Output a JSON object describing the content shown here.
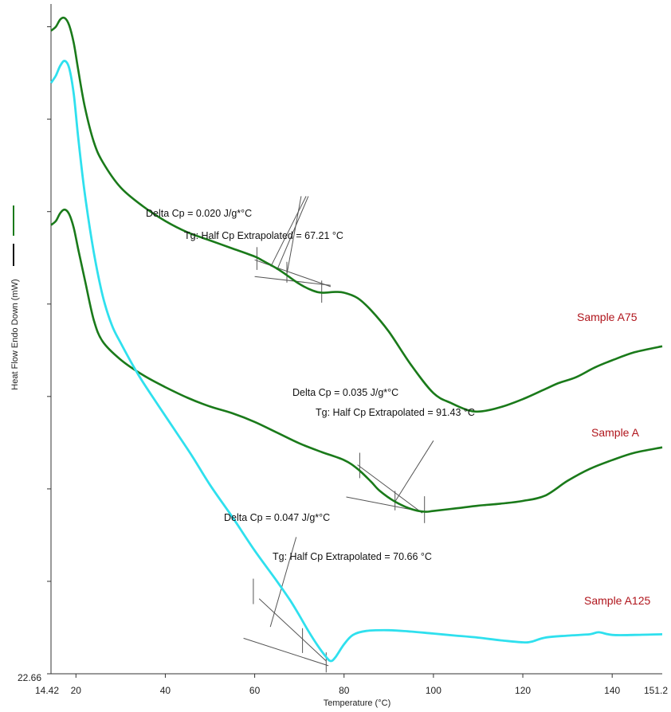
{
  "chart_data": {
    "type": "line",
    "title": "",
    "xlabel": "Temperature (°C)",
    "ylabel": "Heat Flow Endo Down (mW)",
    "xlim": [
      14.42,
      151.2
    ],
    "xtick_values": [
      20,
      40,
      60,
      80,
      100,
      120,
      140
    ],
    "x_start_label": "14.42",
    "x_end_label": "151.2",
    "y_bottom_label": "22.66",
    "ylim": [
      0,
      100
    ],
    "y_tick_values": [
      0,
      13.8,
      27.6,
      41.4,
      55.2,
      69.0,
      82.8,
      96.6
    ],
    "legend_marks": [
      {
        "name": "green-trace-mark",
        "color": "#1a7a1a"
      },
      {
        "name": "black-trace-mark",
        "color": "#111111"
      }
    ],
    "series": [
      {
        "name": "Sample A75",
        "color": "#1a7a1a",
        "x": [
          14.42,
          15.5,
          16.5,
          17.5,
          18.5,
          19.5,
          20.5,
          22,
          24,
          26,
          30,
          35,
          40,
          45,
          50,
          55,
          60,
          62,
          65,
          67.2,
          70,
          73,
          75,
          78,
          80,
          83,
          86,
          90,
          95,
          100,
          104,
          108,
          111,
          115,
          120,
          125,
          128,
          132,
          136,
          140,
          145,
          151.2
        ],
        "y": [
          96,
          96.6,
          97.7,
          97.9,
          96.8,
          94.2,
          90.2,
          84.6,
          79.4,
          76.4,
          72.6,
          69.8,
          67.6,
          65.9,
          64.7,
          63.5,
          62.3,
          61.6,
          60.5,
          59.5,
          58.2,
          57.2,
          56.9,
          57.0,
          56.9,
          56.1,
          54.3,
          51.1,
          46.1,
          41.9,
          40.4,
          39.3,
          39.2,
          39.8,
          41.0,
          42.5,
          43.4,
          44.3,
          45.7,
          46.8,
          48.0,
          48.9
        ]
      },
      {
        "name": "Sample A",
        "color": "#1a7a1a",
        "x": [
          14.42,
          15.5,
          16.5,
          17.5,
          18.5,
          19.5,
          20.5,
          22,
          24,
          26,
          30,
          35,
          40,
          45,
          50,
          55,
          60,
          65,
          70,
          75,
          80,
          83,
          86,
          88,
          91.4,
          95,
          98,
          100,
          105,
          110,
          115,
          120,
          125,
          130,
          135,
          140,
          145,
          151.2
        ],
        "y": [
          67,
          67.6,
          68.8,
          69.3,
          68.6,
          66.6,
          63.4,
          58.8,
          52.8,
          49.6,
          46.9,
          44.6,
          42.8,
          41.2,
          39.9,
          38.9,
          37.6,
          36.0,
          34.4,
          33.1,
          31.9,
          30.6,
          28.7,
          27.3,
          25.7,
          24.6,
          24.2,
          24.3,
          24.7,
          25.1,
          25.4,
          25.8,
          26.6,
          28.8,
          30.6,
          31.9,
          33.0,
          33.8
        ]
      },
      {
        "name": "Sample A125",
        "color": "#2fe0ee",
        "x": [
          14.42,
          15.5,
          16.5,
          17.5,
          18.5,
          19.5,
          20.5,
          22,
          24,
          26,
          28,
          30,
          34,
          38,
          42,
          46,
          50,
          55,
          60,
          65,
          68,
          70,
          72,
          74,
          76,
          77,
          78,
          80,
          82,
          85,
          90,
          95,
          100,
          105,
          110,
          115,
          120,
          122,
          125,
          130,
          135,
          137,
          140,
          145,
          151.2
        ],
        "y": [
          88.2,
          89.3,
          90.8,
          91.5,
          90.4,
          86.6,
          80.1,
          71.6,
          62.9,
          56.4,
          52.1,
          49.4,
          44.6,
          40.5,
          36.5,
          32.5,
          28.2,
          23.4,
          18.4,
          13.8,
          10.9,
          8.7,
          6.4,
          4.3,
          2.5,
          1.9,
          2.4,
          4.4,
          5.8,
          6.4,
          6.5,
          6.3,
          6.0,
          5.7,
          5.4,
          5.0,
          4.7,
          4.8,
          5.4,
          5.7,
          5.9,
          6.2,
          5.8,
          5.8,
          5.9
        ]
      }
    ],
    "annotations": [
      {
        "delta_cp": "Delta Cp = 0.020 J/g*°C",
        "tg": "Tg: Half Cp Extrapolated = 67.21 °C"
      },
      {
        "delta_cp": "Delta Cp = 0.035 J/g*°C",
        "tg": "Tg: Half Cp Extrapolated = 91.43 °C"
      },
      {
        "delta_cp": "Delta Cp = 0.047 J/g*°C",
        "tg": "Tg: Half Cp Extrapolated = 70.66 °C"
      }
    ],
    "construction_lines": [
      {
        "name": "a75-onset-tangent",
        "x": [
          60,
          77
        ],
        "y": [
          61.8,
          57.8
        ]
      },
      {
        "name": "a75-baseline",
        "x": [
          60,
          77
        ],
        "y": [
          59.3,
          58.0
        ]
      },
      {
        "name": "a75-pointer-1",
        "x": [
          63.6,
          71.5
        ],
        "y": [
          60.8,
          71.3
        ]
      },
      {
        "name": "a75-pointer-2",
        "x": [
          65,
          72
        ],
        "y": [
          60.3,
          71.3
        ]
      },
      {
        "name": "a75-pointer-3",
        "x": [
          67.2,
          70.4
        ],
        "y": [
          59.7,
          71.3
        ]
      },
      {
        "name": "a75-tick-1",
        "x": [
          60.5,
          60.5
        ],
        "y": [
          60.3,
          63.7
        ]
      },
      {
        "name": "a75-tick-2",
        "x": [
          67.2,
          67.2
        ],
        "y": [
          58.4,
          61.5
        ]
      },
      {
        "name": "a75-tick-3",
        "x": [
          75,
          75
        ],
        "y": [
          55.4,
          58.7
        ]
      },
      {
        "name": "a-tangent",
        "x": [
          83,
          97.5
        ],
        "y": [
          31.2,
          24.0
        ]
      },
      {
        "name": "a-baseline",
        "x": [
          80.5,
          97.5
        ],
        "y": [
          26.4,
          24.2
        ]
      },
      {
        "name": "a-pointer",
        "x": [
          91.4,
          100
        ],
        "y": [
          25.7,
          34.8
        ]
      },
      {
        "name": "a-tick-1",
        "x": [
          83.5,
          83.5
        ],
        "y": [
          29.2,
          33.0
        ]
      },
      {
        "name": "a-tick-2",
        "x": [
          91.4,
          91.4
        ],
        "y": [
          24.4,
          27.3
        ]
      },
      {
        "name": "a-tick-3",
        "x": [
          98,
          98,
          98
        ],
        "y": [
          22.5,
          24.2,
          26.5
        ]
      },
      {
        "name": "a125-tangent",
        "x": [
          61,
          76
        ],
        "y": [
          11.2,
          1.9
        ]
      },
      {
        "name": "a125-baseline",
        "x": [
          57.5,
          76.5
        ],
        "y": [
          5.3,
          1.2
        ]
      },
      {
        "name": "a125-pointer",
        "x": [
          63.5,
          69.3
        ],
        "y": [
          7.0,
          20.4
        ]
      },
      {
        "name": "a125-tick-1",
        "x": [
          59.7,
          59.7
        ],
        "y": [
          10.4,
          14.2
        ]
      },
      {
        "name": "a125-tick-2",
        "x": [
          70.7,
          70.7
        ],
        "y": [
          3.1,
          6.8
        ]
      },
      {
        "name": "a125-tick-3",
        "x": [
          76,
          76
        ],
        "y": [
          0.2,
          3.2
        ]
      }
    ]
  }
}
